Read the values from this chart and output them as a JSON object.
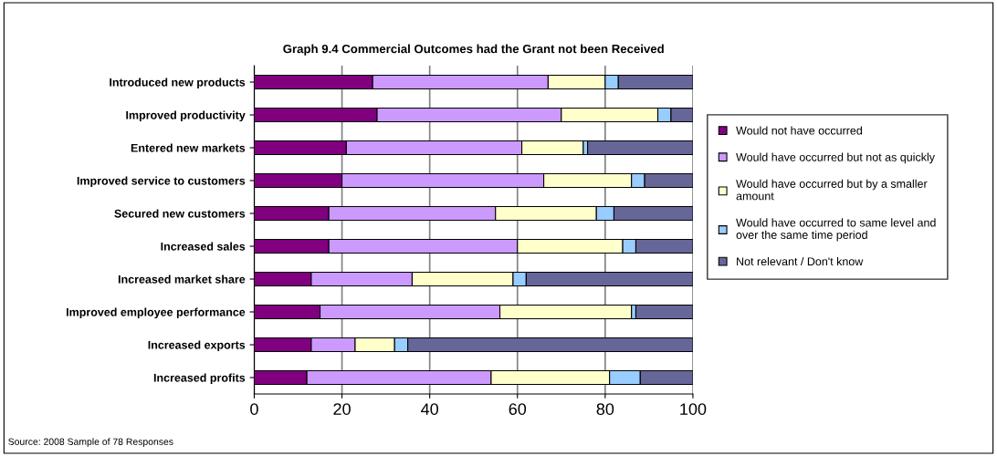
{
  "chart_data": {
    "type": "bar",
    "orientation": "horizontal",
    "stacked": true,
    "title": "Graph 9.4 Commercial Outcomes had the Grant not been Received",
    "categories": [
      "Introduced new products",
      "Improved productivity",
      "Entered new markets",
      "Improved service to customers",
      "Secured new customers",
      "Increased sales",
      "Increased market share",
      "Improved employee performance",
      "Increased exports",
      "Increased profits"
    ],
    "series": [
      {
        "name": "Would not have occurred",
        "color": "#800080",
        "values": [
          27,
          28,
          21,
          20,
          17,
          17,
          13,
          15,
          13,
          12
        ]
      },
      {
        "name": "Would have occurred but not as quickly",
        "color": "#cc99ff",
        "values": [
          40,
          42,
          40,
          46,
          38,
          43,
          23,
          41,
          10,
          42
        ]
      },
      {
        "name": "Would have occurred but by a smaller amount",
        "color": "#ffffcc",
        "values": [
          13,
          22,
          14,
          20,
          23,
          24,
          23,
          30,
          9,
          27
        ]
      },
      {
        "name": "Would have occurred to same level and over the same time period",
        "color": "#99ccff",
        "values": [
          3,
          3,
          1,
          3,
          4,
          3,
          3,
          1,
          3,
          7
        ]
      },
      {
        "name": "Not relevant / Don't know",
        "color": "#666699",
        "values": [
          17,
          5,
          24,
          11,
          18,
          13,
          38,
          13,
          65,
          12
        ]
      }
    ],
    "xlim": [
      0,
      100
    ],
    "xticks": [
      0,
      20,
      40,
      60,
      80,
      100
    ],
    "grid": "x",
    "legend": "right",
    "annotations": [
      "Source: 2008 Sample of 78 Responses"
    ]
  }
}
